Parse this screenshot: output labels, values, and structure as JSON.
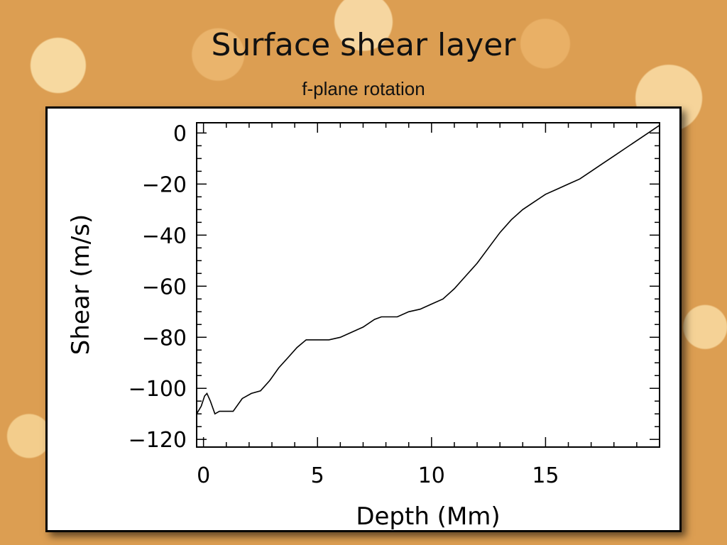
{
  "slide": {
    "title": "Surface shear layer",
    "subtitle": "f-plane rotation"
  },
  "chart_data": {
    "type": "line",
    "title": "",
    "xlabel": "Depth (Mm)",
    "ylabel": "Shear (m/s)",
    "xlim": [
      -0.3,
      20
    ],
    "ylim": [
      -123,
      4
    ],
    "x_ticks": [
      0,
      5,
      10,
      15
    ],
    "x_tick_labels": [
      "0",
      "5",
      "10",
      "15"
    ],
    "y_ticks": [
      0,
      -20,
      -40,
      -60,
      -80,
      -100,
      -120
    ],
    "y_tick_labels": [
      "0",
      "−20",
      "−40",
      "−60",
      "−80",
      "−100",
      "−120"
    ],
    "grid": false,
    "series": [
      {
        "color": "#000000",
        "x": [
          -0.3,
          -0.1,
          0.05,
          0.15,
          0.3,
          0.5,
          0.7,
          1.0,
          1.3,
          1.7,
          2.1,
          2.5,
          2.9,
          3.3,
          3.7,
          4.1,
          4.5,
          5.0,
          5.5,
          6.0,
          6.5,
          7.0,
          7.5,
          7.8,
          8.5,
          9.0,
          9.5,
          10.0,
          10.5,
          11.0,
          11.5,
          12.0,
          12.5,
          13.0,
          13.5,
          14.0,
          14.5,
          15.0,
          15.5,
          16.0,
          16.5,
          17.0,
          17.5,
          18.0,
          18.5,
          19.0,
          19.5,
          20.0
        ],
        "y": [
          -110,
          -107,
          -103,
          -102,
          -105,
          -110,
          -109,
          -109,
          -109,
          -104,
          -102,
          -101,
          -97,
          -92,
          -88,
          -84,
          -81,
          -81,
          -81,
          -80,
          -78,
          -76,
          -73,
          -72,
          -72,
          -70,
          -69,
          -67,
          -65,
          -61,
          -56,
          -51,
          -45,
          -39,
          -34,
          -30,
          -27,
          -24,
          -22,
          -20,
          -18,
          -15,
          -12,
          -9,
          -6,
          -3,
          0,
          3
        ]
      }
    ]
  }
}
